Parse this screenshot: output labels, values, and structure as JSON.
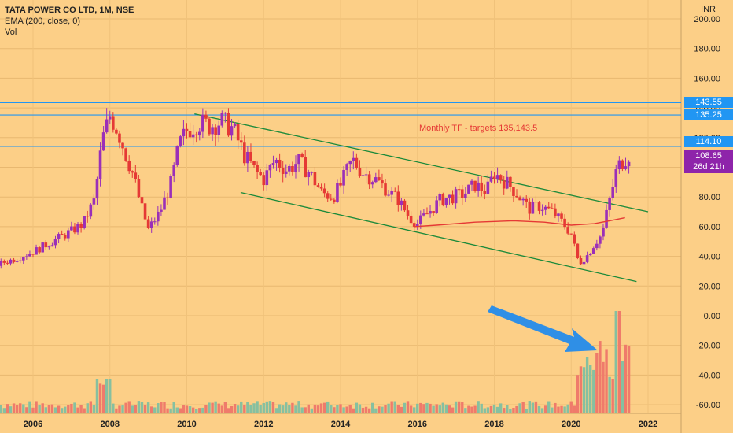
{
  "legend": {
    "title": "TATA POWER CO LTD, 1M, NSE",
    "ema": "EMA (200, close, 0)",
    "vol": "Vol"
  },
  "axis": {
    "currency": "INR",
    "y_ticks": [
      "200.00",
      "180.00",
      "160.00",
      "140.00",
      "120.00",
      "100.00",
      "80.00",
      "60.00",
      "40.00",
      "20.00",
      "0.00",
      "-20.00",
      "-40.00",
      "-60.00"
    ],
    "x_ticks": [
      "2006",
      "2008",
      "2010",
      "2012",
      "2014",
      "2016",
      "2018",
      "2020",
      "2022"
    ]
  },
  "price_tags": {
    "level_143": "143.55",
    "level_135": "135.25",
    "level_114": "114.10",
    "last_price": "108.65",
    "countdown": "26d 21h"
  },
  "annotation": "Monthly TF - targets 135,143.5",
  "colors": {
    "background": "#fccf87",
    "up": "#9b2fb8",
    "down": "#e53935",
    "ema": "#e53935",
    "channel": "#1b8a3a",
    "levels": "#2196f3",
    "vol_up": "#86c0a0",
    "vol_down": "#ef7b6b",
    "arrow": "#2f8fe6",
    "last_tag": "#8e24aa"
  },
  "chart_data": {
    "type": "candlestick",
    "title": "TATA POWER CO LTD, 1M, NSE",
    "currency": "INR",
    "ylim": [
      -65,
      205
    ],
    "xlim": [
      2005.0,
      2022.5
    ],
    "horizontal_levels": [
      143.55,
      135.25,
      114.1
    ],
    "last_price": 108.65,
    "channel_upper": [
      [
        2010.2,
        136
      ],
      [
        2022.0,
        70
      ]
    ],
    "channel_lower": [
      [
        2011.4,
        83
      ],
      [
        2021.7,
        23
      ]
    ],
    "ema_200": [
      [
        2015.9,
        60
      ],
      [
        2016.5,
        61
      ],
      [
        2017.5,
        63
      ],
      [
        2018.5,
        64
      ],
      [
        2019.3,
        63
      ],
      [
        2020.0,
        61
      ],
      [
        2020.6,
        62
      ],
      [
        2021.0,
        64
      ],
      [
        2021.4,
        66
      ]
    ],
    "price_path": [
      [
        2005.0,
        34
      ],
      [
        2005.5,
        38
      ],
      [
        2006.0,
        43
      ],
      [
        2006.5,
        50
      ],
      [
        2007.0,
        57
      ],
      [
        2007.3,
        62
      ],
      [
        2007.6,
        78
      ],
      [
        2007.8,
        118
      ],
      [
        2008.0,
        135
      ],
      [
        2008.2,
        125
      ],
      [
        2008.4,
        110
      ],
      [
        2008.6,
        95
      ],
      [
        2008.8,
        75
      ],
      [
        2009.0,
        58
      ],
      [
        2009.3,
        70
      ],
      [
        2009.6,
        90
      ],
      [
        2009.8,
        115
      ],
      [
        2010.0,
        125
      ],
      [
        2010.3,
        130
      ],
      [
        2010.6,
        128
      ],
      [
        2010.9,
        131
      ],
      [
        2011.2,
        126
      ],
      [
        2011.5,
        108
      ],
      [
        2011.8,
        97
      ],
      [
        2012.0,
        92
      ],
      [
        2012.3,
        105
      ],
      [
        2012.6,
        98
      ],
      [
        2012.9,
        104
      ],
      [
        2013.2,
        96
      ],
      [
        2013.5,
        83
      ],
      [
        2013.8,
        80
      ],
      [
        2014.0,
        88
      ],
      [
        2014.3,
        105
      ],
      [
        2014.6,
        96
      ],
      [
        2014.9,
        92
      ],
      [
        2015.2,
        85
      ],
      [
        2015.5,
        78
      ],
      [
        2015.8,
        66
      ],
      [
        2016.0,
        62
      ],
      [
        2016.3,
        70
      ],
      [
        2016.6,
        78
      ],
      [
        2016.9,
        80
      ],
      [
        2017.2,
        82
      ],
      [
        2017.5,
        88
      ],
      [
        2017.8,
        84
      ],
      [
        2018.0,
        96
      ],
      [
        2018.3,
        90
      ],
      [
        2018.6,
        82
      ],
      [
        2018.9,
        72
      ],
      [
        2019.2,
        74
      ],
      [
        2019.5,
        70
      ],
      [
        2019.8,
        62
      ],
      [
        2020.0,
        55
      ],
      [
        2020.2,
        35
      ],
      [
        2020.4,
        40
      ],
      [
        2020.6,
        48
      ],
      [
        2020.8,
        55
      ],
      [
        2021.0,
        78
      ],
      [
        2021.2,
        100
      ],
      [
        2021.4,
        106
      ],
      [
        2021.5,
        108.65
      ]
    ],
    "volume_notes": "volume histogram plotted at bottom, large spike around 2020-2021"
  }
}
